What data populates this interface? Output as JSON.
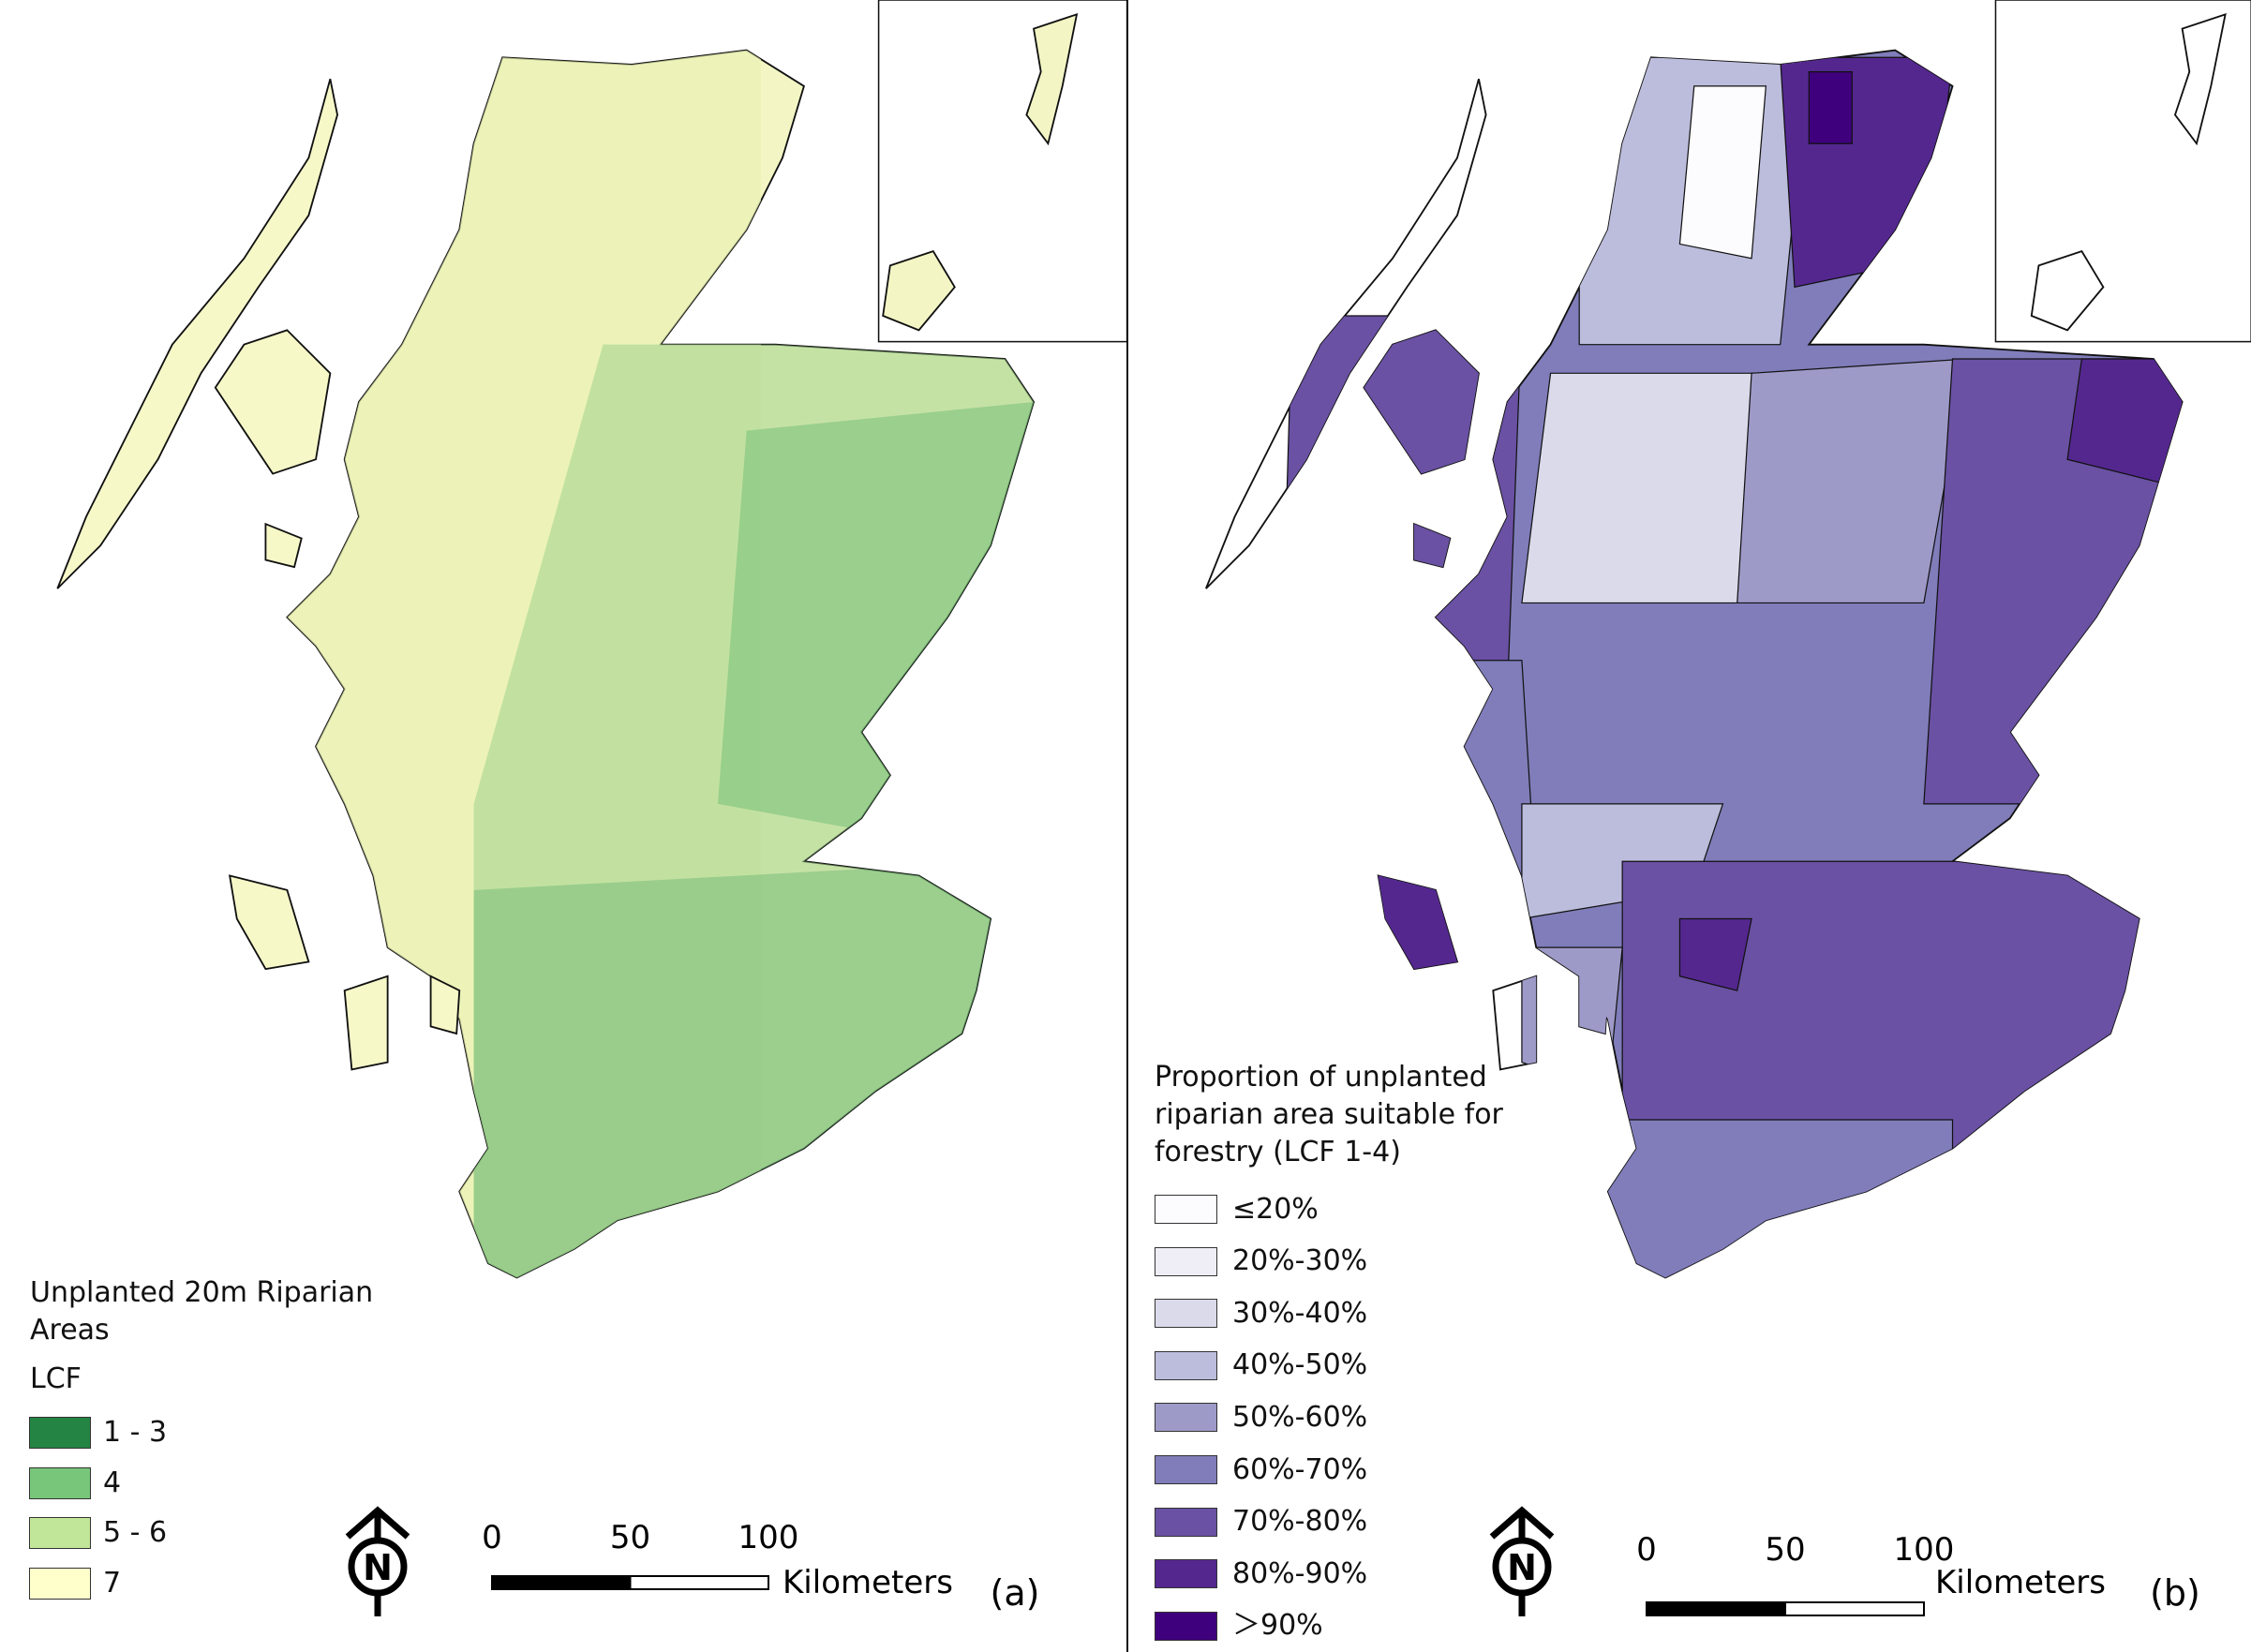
{
  "panels": [
    {
      "label": "(a)",
      "legend": {
        "title": "Unplanted 20m Riparian Areas",
        "subtitle": "LCF",
        "items": [
          {
            "label": "1 - 3",
            "color": "#238443"
          },
          {
            "label": "4",
            "color": "#78c679"
          },
          {
            "label": "5 - 6",
            "color": "#c2e699"
          },
          {
            "label": "7",
            "color": "#ffffcc"
          }
        ]
      },
      "scale_bar": {
        "ticks": [
          "0",
          "50",
          "100"
        ],
        "unit": "Kilometers"
      },
      "north": "N"
    },
    {
      "label": "(b)",
      "legend": {
        "title": "Proportion of unplanted riparian area suitable for forestry (LCF 1-4)",
        "items": [
          {
            "label": "≤20%",
            "color": "#fcfbfd"
          },
          {
            "label": "20%-30%",
            "color": "#efedf5"
          },
          {
            "label": "30%-40%",
            "color": "#dadaeb"
          },
          {
            "label": "40%-50%",
            "color": "#bcbddc"
          },
          {
            "label": "50%-60%",
            "color": "#9e9ac8"
          },
          {
            "label": "60%-70%",
            "color": "#807dba"
          },
          {
            "label": "70%-80%",
            "color": "#6a51a3"
          },
          {
            "label": "80%-90%",
            "color": "#54278f"
          },
          {
            "label": "＞90%",
            "color": "#3f007d"
          }
        ]
      },
      "scale_bar": {
        "ticks": [
          "0",
          "50",
          "100"
        ],
        "unit": "Kilometers"
      },
      "north": "N"
    }
  ]
}
